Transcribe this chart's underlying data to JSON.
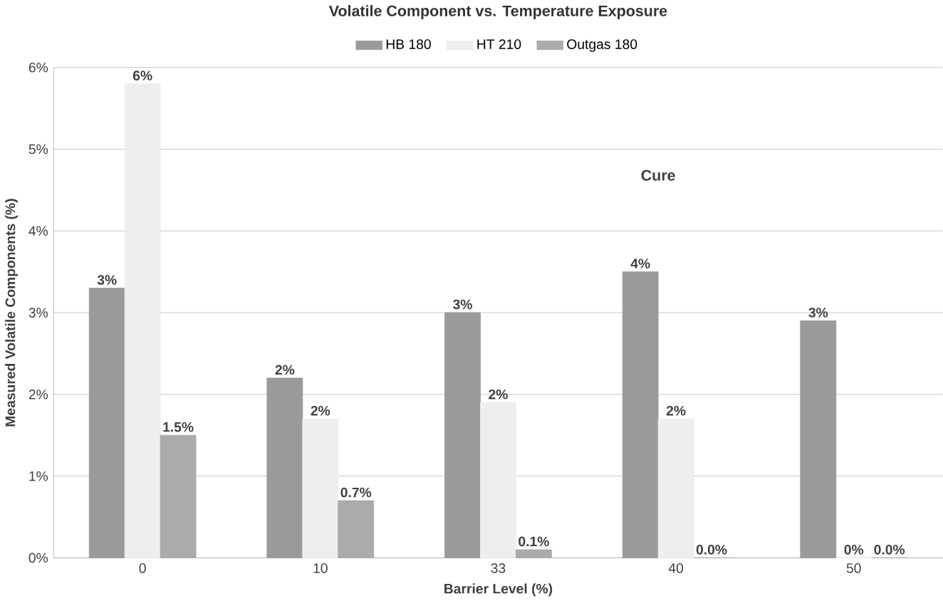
{
  "chart_data": {
    "type": "bar",
    "title": "Volatile Component vs. Temperature Exposure",
    "xlabel": "Barrier Level (%)",
    "ylabel": "Measured Volatile Components (%)",
    "categories": [
      "0",
      "10",
      "33",
      "40",
      "50"
    ],
    "series": [
      {
        "name": "HB 180",
        "color": "#9a9a9a",
        "values": [
          3.3,
          2.2,
          3.0,
          3.5,
          2.9
        ],
        "value_labels": [
          "3%",
          "2%",
          "3%",
          "4%",
          "3%"
        ]
      },
      {
        "name": "HT 210",
        "color": "#eeeeee",
        "values": [
          5.8,
          1.7,
          1.9,
          1.7,
          0.0
        ],
        "value_labels": [
          "6%",
          "2%",
          "2%",
          "2%",
          "0%"
        ]
      },
      {
        "name": "Outgas 180",
        "color": "#ababab",
        "values": [
          1.5,
          0.7,
          0.1,
          0.0,
          0.0
        ],
        "value_labels": [
          "1.5%",
          "0.7%",
          "0.1%",
          "0.0%",
          "0.0%"
        ]
      }
    ],
    "ylim": [
      0,
      6
    ],
    "yticks": [
      {
        "value": 0,
        "label": "0%"
      },
      {
        "value": 1,
        "label": "1%"
      },
      {
        "value": 2,
        "label": "2%"
      },
      {
        "value": 3,
        "label": "3%"
      },
      {
        "value": 4,
        "label": "4%"
      },
      {
        "value": 5,
        "label": "5%"
      },
      {
        "value": 6,
        "label": "6%"
      }
    ],
    "grid": "y",
    "legend": "top",
    "annotations": [
      "Cure"
    ]
  }
}
